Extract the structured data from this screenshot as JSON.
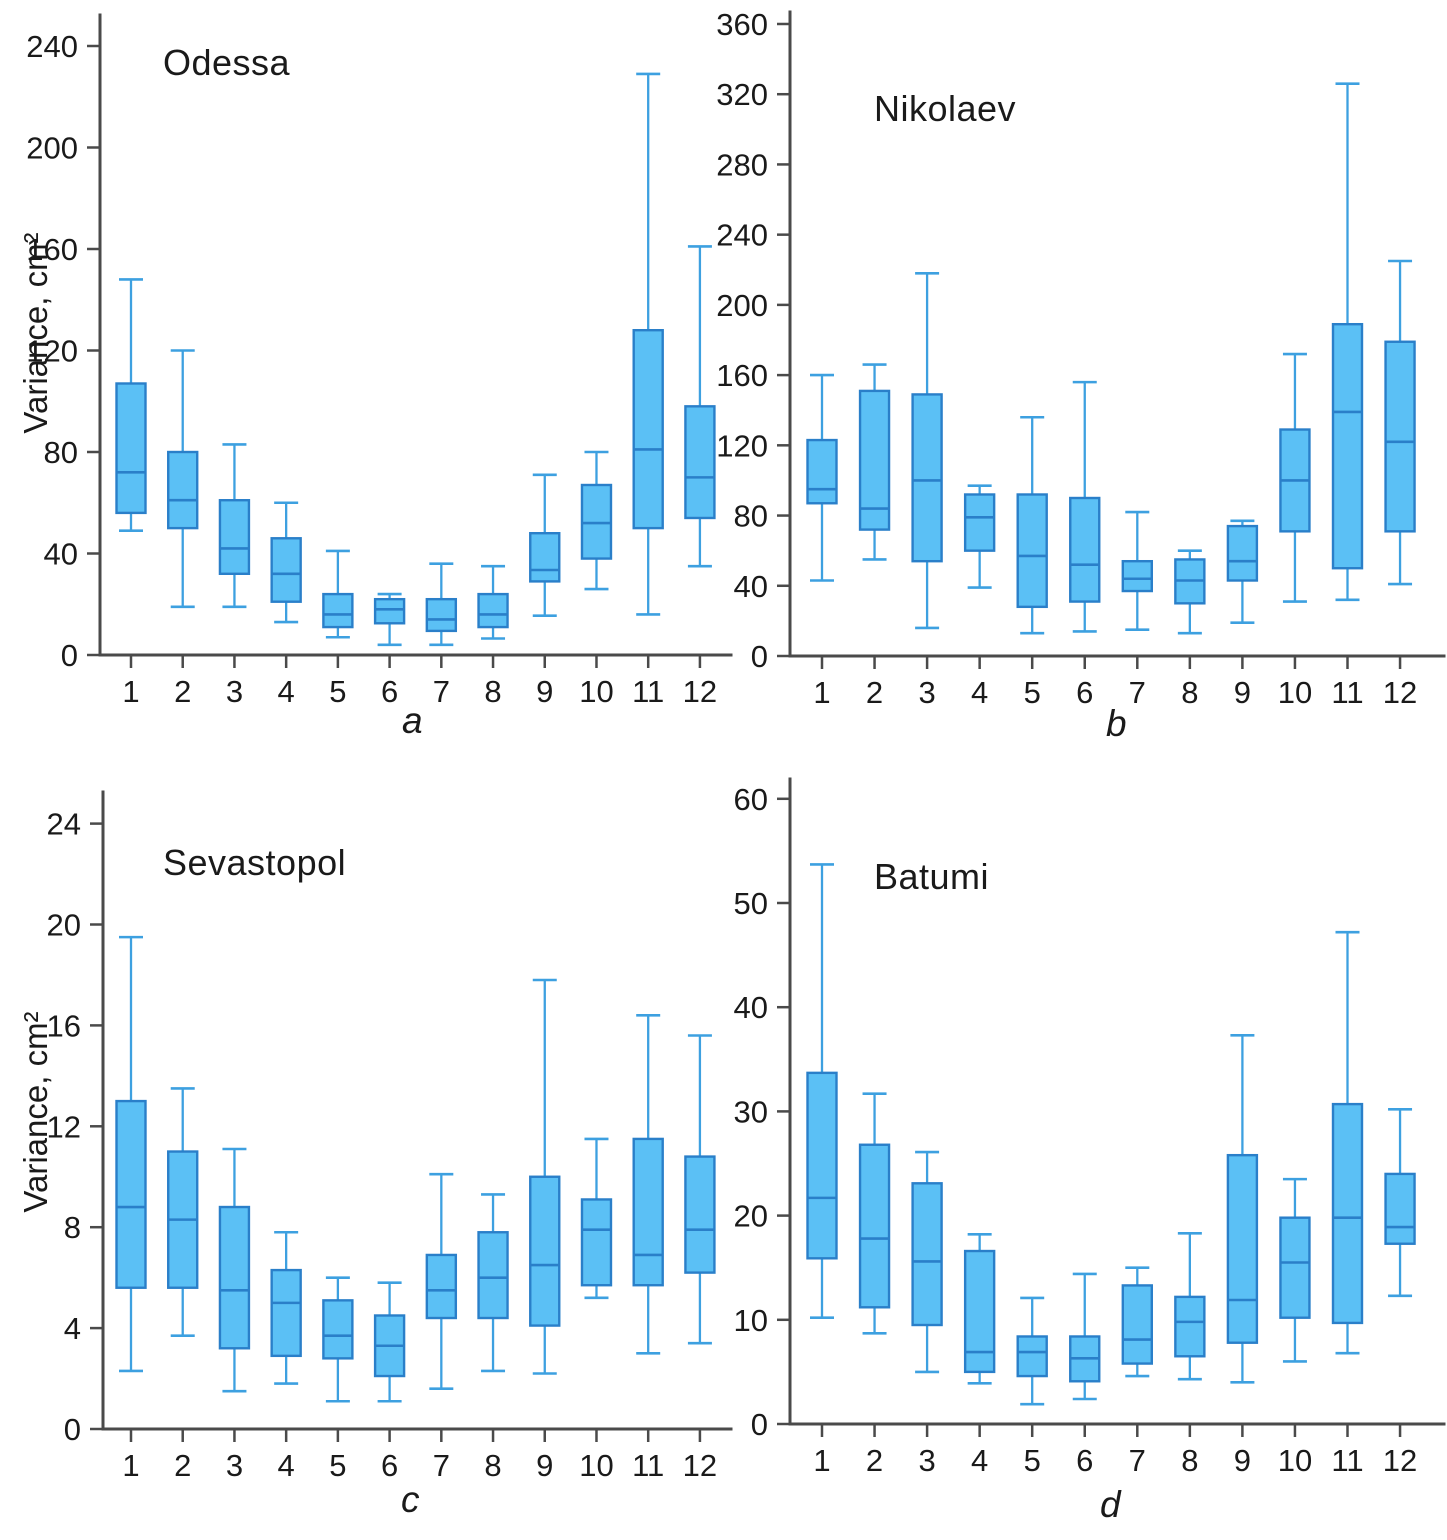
{
  "chart_data": [
    {
      "type": "box",
      "title": "Odessa",
      "panel_label": "a",
      "ylabel": "Variance, cm²",
      "xlabel": "",
      "ylim": [
        0,
        252
      ],
      "yticks": [
        0,
        40,
        80,
        120,
        160,
        200,
        240
      ],
      "grid": false,
      "categories": [
        "1",
        "2",
        "3",
        "4",
        "5",
        "6",
        "7",
        "8",
        "9",
        "10",
        "11",
        "12"
      ],
      "boxes": [
        {
          "month": 1,
          "low": 49,
          "q1": 56,
          "median": 72,
          "q3": 107,
          "high": 148
        },
        {
          "month": 2,
          "low": 19,
          "q1": 50,
          "median": 61,
          "q3": 80,
          "high": 120
        },
        {
          "month": 3,
          "low": 19,
          "q1": 32,
          "median": 42,
          "q3": 61,
          "high": 83
        },
        {
          "month": 4,
          "low": 13,
          "q1": 21,
          "median": 32,
          "q3": 46,
          "high": 60
        },
        {
          "month": 5,
          "low": 7,
          "q1": 11,
          "median": 16,
          "q3": 24,
          "high": 41
        },
        {
          "month": 6,
          "low": 4,
          "q1": 12.5,
          "median": 18,
          "q3": 22,
          "high": 24
        },
        {
          "month": 7,
          "low": 4,
          "q1": 9.5,
          "median": 14,
          "q3": 22,
          "high": 36
        },
        {
          "month": 8,
          "low": 6.5,
          "q1": 11,
          "median": 16,
          "q3": 24,
          "high": 35
        },
        {
          "month": 9,
          "low": 15.5,
          "q1": 29,
          "median": 33.5,
          "q3": 48,
          "high": 71
        },
        {
          "month": 10,
          "low": 26,
          "q1": 38,
          "median": 52,
          "q3": 67,
          "high": 80
        },
        {
          "month": 11,
          "low": 16,
          "q1": 50,
          "median": 81,
          "q3": 128,
          "high": 229
        },
        {
          "month": 12,
          "low": 35,
          "q1": 54,
          "median": 70,
          "q3": 98,
          "high": 161
        }
      ]
    },
    {
      "type": "box",
      "title": "Nikolaev",
      "panel_label": "b",
      "xlabel": "",
      "ylim": [
        0,
        367
      ],
      "yticks": [
        0,
        40,
        80,
        120,
        160,
        200,
        240,
        280,
        320,
        360
      ],
      "grid": false,
      "categories": [
        "1",
        "2",
        "3",
        "4",
        "5",
        "6",
        "7",
        "8",
        "9",
        "10",
        "11",
        "12"
      ],
      "boxes": [
        {
          "month": 1,
          "low": 43,
          "q1": 87,
          "median": 95,
          "q3": 123,
          "high": 160
        },
        {
          "month": 2,
          "low": 55,
          "q1": 72,
          "median": 84,
          "q3": 151,
          "high": 166
        },
        {
          "month": 3,
          "low": 16,
          "q1": 54,
          "median": 100,
          "q3": 149,
          "high": 218
        },
        {
          "month": 4,
          "low": 39,
          "q1": 60,
          "median": 79,
          "q3": 92,
          "high": 97
        },
        {
          "month": 5,
          "low": 13,
          "q1": 28,
          "median": 57,
          "q3": 92,
          "high": 136
        },
        {
          "month": 6,
          "low": 14,
          "q1": 31,
          "median": 52,
          "q3": 90,
          "high": 156
        },
        {
          "month": 7,
          "low": 15,
          "q1": 37,
          "median": 44,
          "q3": 54,
          "high": 82
        },
        {
          "month": 8,
          "low": 13,
          "q1": 30,
          "median": 43,
          "q3": 55,
          "high": 60
        },
        {
          "month": 9,
          "low": 19,
          "q1": 43,
          "median": 54,
          "q3": 74,
          "high": 77
        },
        {
          "month": 10,
          "low": 31,
          "q1": 71,
          "median": 100,
          "q3": 129,
          "high": 172
        },
        {
          "month": 11,
          "low": 32,
          "q1": 50,
          "median": 139,
          "q3": 189,
          "high": 326
        },
        {
          "month": 12,
          "low": 41,
          "q1": 71,
          "median": 122,
          "q3": 179,
          "high": 225
        }
      ]
    },
    {
      "type": "box",
      "title": "Sevastopol",
      "panel_label": "c",
      "ylabel": "Variance, cm²",
      "xlabel": "",
      "ylim": [
        0,
        25.2
      ],
      "yticks": [
        0,
        4,
        8,
        12,
        16,
        20,
        24
      ],
      "grid": false,
      "categories": [
        "1",
        "2",
        "3",
        "4",
        "5",
        "6",
        "7",
        "8",
        "9",
        "10",
        "11",
        "12"
      ],
      "boxes": [
        {
          "month": 1,
          "low": 2.3,
          "q1": 5.6,
          "median": 8.8,
          "q3": 13.0,
          "high": 19.5
        },
        {
          "month": 2,
          "low": 3.7,
          "q1": 5.6,
          "median": 8.3,
          "q3": 11.0,
          "high": 13.5
        },
        {
          "month": 3,
          "low": 1.5,
          "q1": 3.2,
          "median": 5.5,
          "q3": 8.8,
          "high": 11.1
        },
        {
          "month": 4,
          "low": 1.8,
          "q1": 2.9,
          "median": 5.0,
          "q3": 6.3,
          "high": 7.8
        },
        {
          "month": 5,
          "low": 1.1,
          "q1": 2.8,
          "median": 3.7,
          "q3": 5.1,
          "high": 6.0
        },
        {
          "month": 6,
          "low": 1.1,
          "q1": 2.1,
          "median": 3.3,
          "q3": 4.5,
          "high": 5.8
        },
        {
          "month": 7,
          "low": 1.6,
          "q1": 4.4,
          "median": 5.5,
          "q3": 6.9,
          "high": 10.1
        },
        {
          "month": 8,
          "low": 2.3,
          "q1": 4.4,
          "median": 6.0,
          "q3": 7.8,
          "high": 9.3
        },
        {
          "month": 9,
          "low": 2.2,
          "q1": 4.1,
          "median": 6.5,
          "q3": 10.0,
          "high": 17.8
        },
        {
          "month": 10,
          "low": 5.2,
          "q1": 5.7,
          "median": 7.9,
          "q3": 9.1,
          "high": 11.5
        },
        {
          "month": 11,
          "low": 3.0,
          "q1": 5.7,
          "median": 6.9,
          "q3": 11.5,
          "high": 16.4
        },
        {
          "month": 12,
          "low": 3.4,
          "q1": 6.2,
          "median": 7.9,
          "q3": 10.8,
          "high": 15.6
        }
      ]
    },
    {
      "type": "box",
      "title": "Batumi",
      "panel_label": "d",
      "xlabel": "",
      "ylim": [
        0,
        61.8
      ],
      "yticks": [
        0,
        10,
        20,
        30,
        40,
        50,
        60
      ],
      "grid": false,
      "categories": [
        "1",
        "2",
        "3",
        "4",
        "5",
        "6",
        "7",
        "8",
        "9",
        "10",
        "11",
        "12"
      ],
      "boxes": [
        {
          "month": 1,
          "low": 10.2,
          "q1": 15.9,
          "median": 21.7,
          "q3": 33.7,
          "high": 53.7
        },
        {
          "month": 2,
          "low": 8.7,
          "q1": 11.2,
          "median": 17.8,
          "q3": 26.8,
          "high": 31.7
        },
        {
          "month": 3,
          "low": 5.0,
          "q1": 9.5,
          "median": 15.6,
          "q3": 23.1,
          "high": 26.1
        },
        {
          "month": 4,
          "low": 3.9,
          "q1": 5.0,
          "median": 6.9,
          "q3": 16.6,
          "high": 18.2
        },
        {
          "month": 5,
          "low": 1.9,
          "q1": 4.6,
          "median": 6.9,
          "q3": 8.4,
          "high": 12.1
        },
        {
          "month": 6,
          "low": 2.4,
          "q1": 4.1,
          "median": 6.3,
          "q3": 8.4,
          "high": 14.4
        },
        {
          "month": 7,
          "low": 4.6,
          "q1": 5.8,
          "median": 8.1,
          "q3": 13.3,
          "high": 15.0
        },
        {
          "month": 8,
          "low": 4.3,
          "q1": 6.5,
          "median": 9.8,
          "q3": 12.2,
          "high": 18.3
        },
        {
          "month": 9,
          "low": 4.0,
          "q1": 7.8,
          "median": 11.9,
          "q3": 25.8,
          "high": 37.3
        },
        {
          "month": 10,
          "low": 6.0,
          "q1": 10.2,
          "median": 15.5,
          "q3": 19.8,
          "high": 23.5
        },
        {
          "month": 11,
          "low": 6.8,
          "q1": 9.7,
          "median": 19.8,
          "q3": 30.7,
          "high": 47.2
        },
        {
          "month": 12,
          "low": 12.3,
          "q1": 17.3,
          "median": 18.9,
          "q3": 24.0,
          "high": 30.2
        }
      ]
    }
  ],
  "style": {
    "box_fill": "#5bc0f5",
    "box_stroke": "#2a7fc9",
    "median_stroke": "#2a7fc9",
    "whisker_stroke": "#3da0e0",
    "axis_color": "#4a4a4a",
    "text_color": "#1a1a1a"
  }
}
